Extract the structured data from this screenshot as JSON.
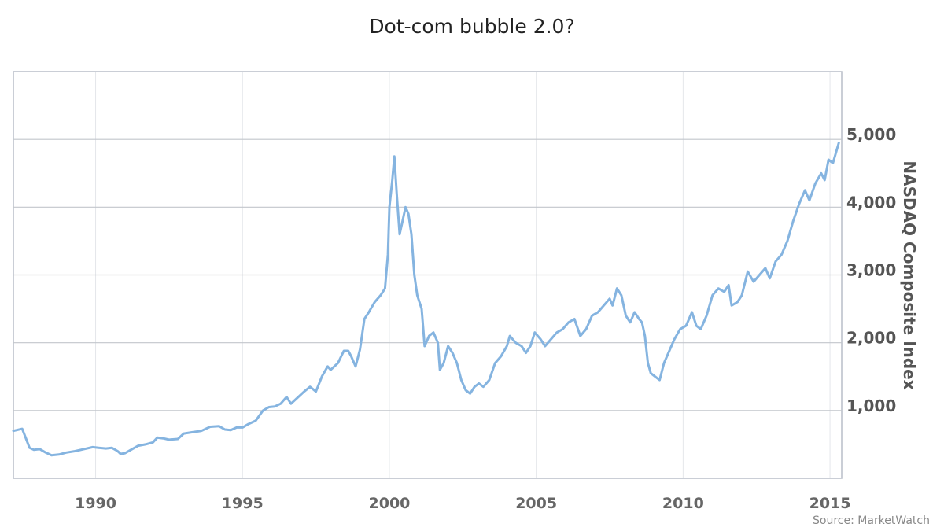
{
  "chart_data": {
    "type": "line",
    "title": "Dot-com bubble 2.0?",
    "xlabel": "",
    "ylabel": "NASDAQ Composite Index",
    "source": "Source: MarketWatch",
    "xlim": [
      1987.2,
      2015.4
    ],
    "ylim": [
      0,
      6000
    ],
    "x_ticks": [
      1990,
      1995,
      2000,
      2005,
      2010,
      2015
    ],
    "x_tick_labels": [
      "1990",
      "1995",
      "2000",
      "2005",
      "2010",
      "2015"
    ],
    "y_ticks": [
      1000,
      2000,
      3000,
      4000,
      5000
    ],
    "y_tick_labels": [
      "1,000",
      "2,000",
      "3,000",
      "4,000",
      "5,000"
    ],
    "y_axis_position": "right",
    "grid": true,
    "legend": false,
    "series": [
      {
        "color": "#85b4e0",
        "points": [
          [
            1987.2,
            700
          ],
          [
            1987.5,
            730
          ],
          [
            1987.6,
            620
          ],
          [
            1987.75,
            450
          ],
          [
            1987.9,
            420
          ],
          [
            1988.1,
            430
          ],
          [
            1988.3,
            380
          ],
          [
            1988.5,
            340
          ],
          [
            1988.75,
            350
          ],
          [
            1989.0,
            380
          ],
          [
            1989.3,
            400
          ],
          [
            1989.6,
            430
          ],
          [
            1989.9,
            460
          ],
          [
            1990.1,
            450
          ],
          [
            1990.35,
            440
          ],
          [
            1990.55,
            450
          ],
          [
            1990.75,
            400
          ],
          [
            1990.85,
            360
          ],
          [
            1991.0,
            370
          ],
          [
            1991.2,
            420
          ],
          [
            1991.45,
            480
          ],
          [
            1991.7,
            500
          ],
          [
            1991.95,
            530
          ],
          [
            1992.1,
            600
          ],
          [
            1992.3,
            590
          ],
          [
            1992.5,
            570
          ],
          [
            1992.8,
            580
          ],
          [
            1993.0,
            660
          ],
          [
            1993.3,
            680
          ],
          [
            1993.6,
            700
          ],
          [
            1993.9,
            760
          ],
          [
            1994.2,
            770
          ],
          [
            1994.4,
            720
          ],
          [
            1994.6,
            710
          ],
          [
            1994.8,
            750
          ],
          [
            1995.0,
            750
          ],
          [
            1995.2,
            800
          ],
          [
            1995.45,
            850
          ],
          [
            1995.7,
            1000
          ],
          [
            1995.9,
            1050
          ],
          [
            1996.1,
            1060
          ],
          [
            1996.3,
            1100
          ],
          [
            1996.5,
            1200
          ],
          [
            1996.65,
            1100
          ],
          [
            1996.9,
            1200
          ],
          [
            1997.1,
            1280
          ],
          [
            1997.3,
            1350
          ],
          [
            1997.5,
            1280
          ],
          [
            1997.7,
            1500
          ],
          [
            1997.9,
            1650
          ],
          [
            1998.0,
            1600
          ],
          [
            1998.25,
            1700
          ],
          [
            1998.45,
            1880
          ],
          [
            1998.6,
            1880
          ],
          [
            1998.7,
            1800
          ],
          [
            1998.85,
            1650
          ],
          [
            1999.0,
            1900
          ],
          [
            1999.15,
            2350
          ],
          [
            1999.3,
            2450
          ],
          [
            1999.5,
            2600
          ],
          [
            1999.7,
            2700
          ],
          [
            1999.85,
            2800
          ],
          [
            1999.95,
            3300
          ],
          [
            2000.0,
            4000
          ],
          [
            2000.1,
            4400
          ],
          [
            2000.17,
            4750
          ],
          [
            2000.25,
            4200
          ],
          [
            2000.35,
            3600
          ],
          [
            2000.45,
            3800
          ],
          [
            2000.55,
            4000
          ],
          [
            2000.65,
            3900
          ],
          [
            2000.75,
            3600
          ],
          [
            2000.85,
            3000
          ],
          [
            2000.95,
            2700
          ],
          [
            2001.1,
            2500
          ],
          [
            2001.2,
            1950
          ],
          [
            2001.35,
            2100
          ],
          [
            2001.5,
            2150
          ],
          [
            2001.65,
            2000
          ],
          [
            2001.72,
            1600
          ],
          [
            2001.85,
            1700
          ],
          [
            2002.0,
            1950
          ],
          [
            2002.15,
            1850
          ],
          [
            2002.3,
            1700
          ],
          [
            2002.45,
            1450
          ],
          [
            2002.6,
            1300
          ],
          [
            2002.75,
            1250
          ],
          [
            2002.9,
            1350
          ],
          [
            2003.05,
            1400
          ],
          [
            2003.2,
            1350
          ],
          [
            2003.4,
            1450
          ],
          [
            2003.6,
            1700
          ],
          [
            2003.8,
            1800
          ],
          [
            2004.0,
            1950
          ],
          [
            2004.1,
            2100
          ],
          [
            2004.3,
            2000
          ],
          [
            2004.5,
            1950
          ],
          [
            2004.65,
            1850
          ],
          [
            2004.8,
            1950
          ],
          [
            2004.95,
            2150
          ],
          [
            2005.15,
            2050
          ],
          [
            2005.3,
            1950
          ],
          [
            2005.5,
            2050
          ],
          [
            2005.7,
            2150
          ],
          [
            2005.9,
            2200
          ],
          [
            2006.1,
            2300
          ],
          [
            2006.3,
            2350
          ],
          [
            2006.5,
            2100
          ],
          [
            2006.7,
            2200
          ],
          [
            2006.9,
            2400
          ],
          [
            2007.1,
            2450
          ],
          [
            2007.3,
            2550
          ],
          [
            2007.5,
            2650
          ],
          [
            2007.6,
            2550
          ],
          [
            2007.75,
            2800
          ],
          [
            2007.9,
            2700
          ],
          [
            2008.05,
            2400
          ],
          [
            2008.2,
            2300
          ],
          [
            2008.35,
            2450
          ],
          [
            2008.5,
            2350
          ],
          [
            2008.6,
            2300
          ],
          [
            2008.7,
            2100
          ],
          [
            2008.8,
            1700
          ],
          [
            2008.9,
            1550
          ],
          [
            2009.05,
            1500
          ],
          [
            2009.2,
            1450
          ],
          [
            2009.35,
            1700
          ],
          [
            2009.5,
            1850
          ],
          [
            2009.7,
            2050
          ],
          [
            2009.9,
            2200
          ],
          [
            2010.1,
            2250
          ],
          [
            2010.3,
            2450
          ],
          [
            2010.45,
            2250
          ],
          [
            2010.6,
            2200
          ],
          [
            2010.8,
            2400
          ],
          [
            2011.0,
            2700
          ],
          [
            2011.2,
            2800
          ],
          [
            2011.4,
            2750
          ],
          [
            2011.55,
            2850
          ],
          [
            2011.65,
            2550
          ],
          [
            2011.85,
            2600
          ],
          [
            2012.0,
            2700
          ],
          [
            2012.2,
            3050
          ],
          [
            2012.4,
            2900
          ],
          [
            2012.6,
            3000
          ],
          [
            2012.8,
            3100
          ],
          [
            2012.95,
            2950
          ],
          [
            2013.15,
            3200
          ],
          [
            2013.35,
            3300
          ],
          [
            2013.55,
            3500
          ],
          [
            2013.75,
            3800
          ],
          [
            2013.95,
            4050
          ],
          [
            2014.15,
            4250
          ],
          [
            2014.3,
            4100
          ],
          [
            2014.5,
            4350
          ],
          [
            2014.7,
            4500
          ],
          [
            2014.82,
            4400
          ],
          [
            2014.95,
            4700
          ],
          [
            2015.1,
            4650
          ],
          [
            2015.3,
            4950
          ]
        ]
      }
    ]
  }
}
